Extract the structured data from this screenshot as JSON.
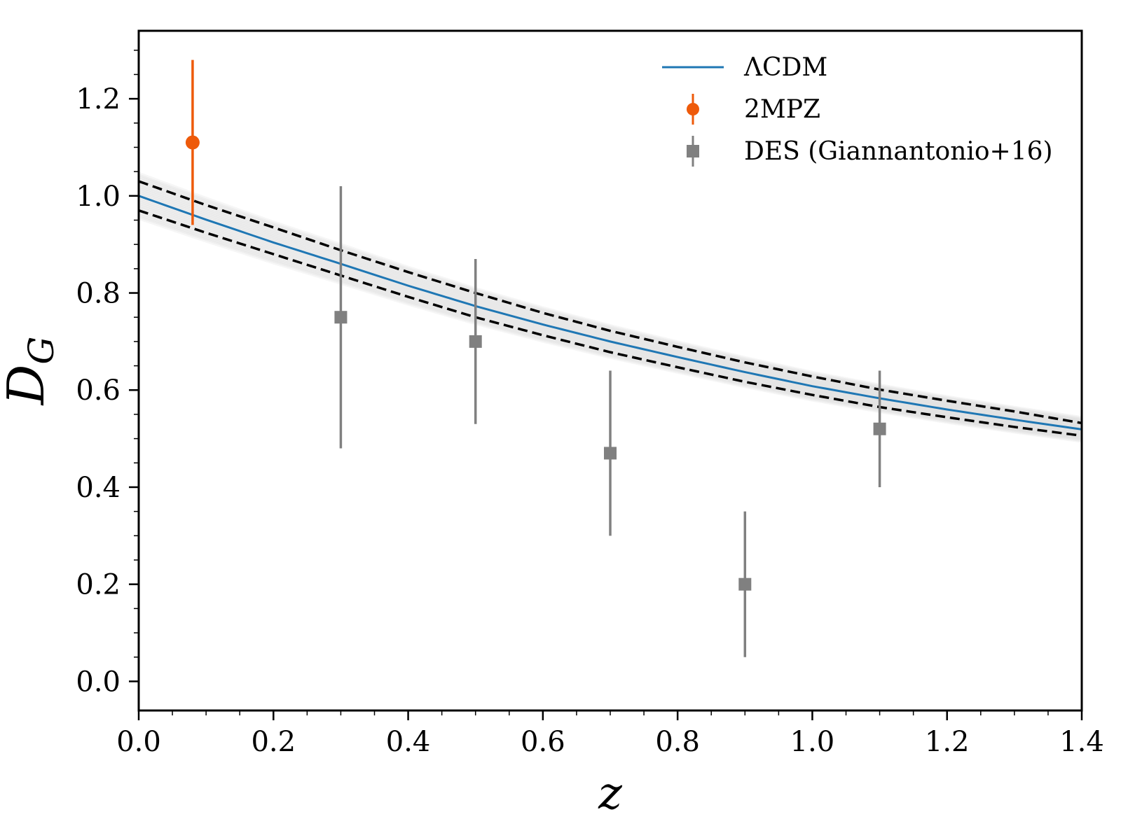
{
  "chart_data": {
    "type": "scatter",
    "xlabel": "z",
    "ylabel": "D",
    "ylabel_subscript": "G",
    "xlim": [
      0.0,
      1.4
    ],
    "ylim": [
      -0.06,
      1.34
    ],
    "grid": false,
    "legend_position": "top-right",
    "x_ticks": [
      "0.0",
      "0.2",
      "0.4",
      "0.6",
      "0.8",
      "1.0",
      "1.2",
      "1.4"
    ],
    "y_ticks": [
      "0.0",
      "0.2",
      "0.4",
      "0.6",
      "0.8",
      "1.0",
      "1.2"
    ],
    "series": [
      {
        "name": "ΛCDM",
        "kind": "line",
        "color": "#1f77b4",
        "x": [
          0.0,
          0.1,
          0.2,
          0.3,
          0.4,
          0.5,
          0.6,
          0.7,
          0.8,
          0.9,
          1.0,
          1.1,
          1.2,
          1.3,
          1.4
        ],
        "y": [
          1.0,
          0.951,
          0.904,
          0.86,
          0.815,
          0.773,
          0.735,
          0.7,
          0.668,
          0.637,
          0.608,
          0.583,
          0.56,
          0.539,
          0.519
        ]
      },
      {
        "name": "2MPZ",
        "kind": "errorbar",
        "marker": "circle",
        "color": "#ee5a0a",
        "points": [
          {
            "x": 0.08,
            "y": 1.11,
            "ylo": 0.94,
            "yhi": 1.28
          }
        ]
      },
      {
        "name": "DES (Giannantonio+16)",
        "kind": "errorbar",
        "marker": "square",
        "color": "#808080",
        "points": [
          {
            "x": 0.3,
            "y": 0.75,
            "ylo": 0.48,
            "yhi": 1.02
          },
          {
            "x": 0.5,
            "y": 0.7,
            "ylo": 0.53,
            "yhi": 0.87
          },
          {
            "x": 0.7,
            "y": 0.47,
            "ylo": 0.3,
            "yhi": 0.64
          },
          {
            "x": 0.9,
            "y": 0.2,
            "ylo": 0.05,
            "yhi": 0.35
          },
          {
            "x": 1.1,
            "y": 0.52,
            "ylo": 0.4,
            "yhi": 0.64
          }
        ]
      }
    ],
    "bounds": {
      "style": "dashed",
      "color": "#000000",
      "upper": [
        1.03,
        0.981,
        0.935,
        0.888,
        0.843,
        0.8,
        0.759,
        0.722,
        0.689,
        0.657,
        0.628,
        0.601,
        0.578,
        0.556,
        0.532
      ],
      "lower": [
        0.97,
        0.924,
        0.88,
        0.836,
        0.792,
        0.75,
        0.713,
        0.678,
        0.647,
        0.617,
        0.59,
        0.565,
        0.544,
        0.524,
        0.506
      ]
    },
    "band_color": "#cccccc"
  }
}
